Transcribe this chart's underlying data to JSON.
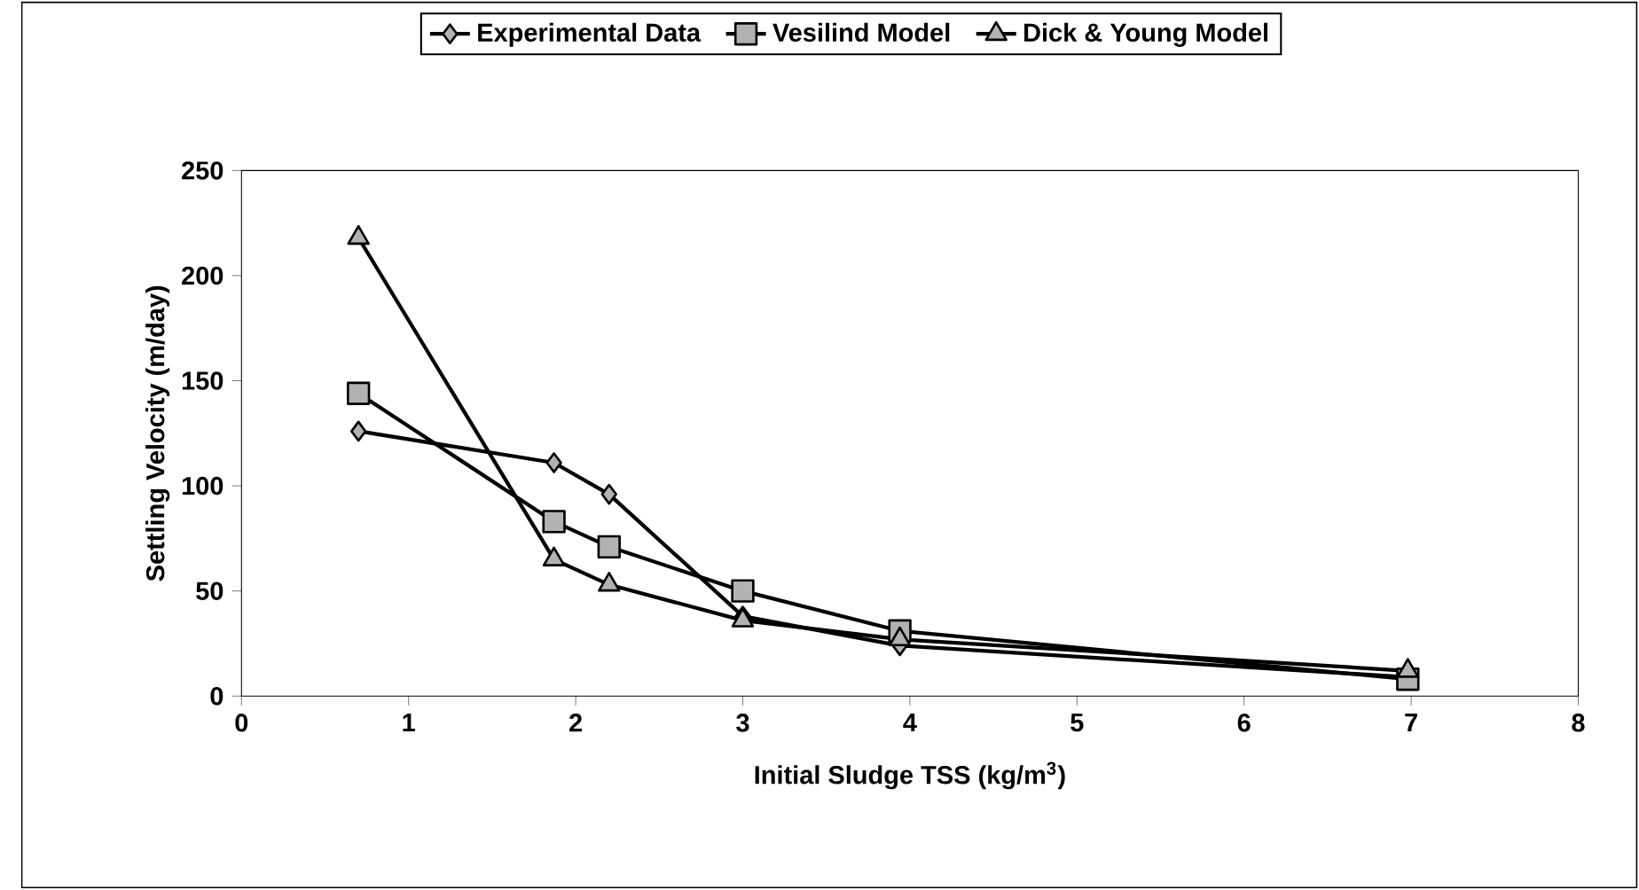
{
  "chart_data": {
    "type": "line",
    "xlabel": "Initial Sludge TSS (kg/m$^{3}$)",
    "ylabel": "Settling Velocity (m/day)",
    "xlim": [
      0,
      8
    ],
    "xticks": [
      0,
      1,
      2,
      3,
      4,
      5,
      6,
      7,
      8
    ],
    "ylim": [
      0,
      250
    ],
    "yticks": [
      0,
      50,
      100,
      150,
      200,
      250
    ],
    "grid": false,
    "legend": "top",
    "series": [
      {
        "name": "Experimental Data",
        "color": "#000000",
        "marker": "diamond",
        "x": [
          0.7,
          1.87,
          2.2,
          3,
          3.94,
          6.98
        ],
        "values": [
          126,
          111,
          96,
          38,
          24,
          9
        ]
      },
      {
        "name": "Vesilind Model",
        "color": "#000000",
        "marker": "square",
        "x": [
          0.7,
          1.87,
          2.2,
          3,
          3.94,
          6.98
        ],
        "values": [
          144,
          83,
          71,
          50,
          31,
          8
        ]
      },
      {
        "name": "Dick & Young Model",
        "color": "#000000",
        "marker": "triangle",
        "x": [
          0.7,
          1.87,
          2.2,
          3,
          3.94,
          6.98
        ],
        "values": [
          218,
          65,
          53,
          36,
          27,
          12
        ]
      }
    ]
  }
}
